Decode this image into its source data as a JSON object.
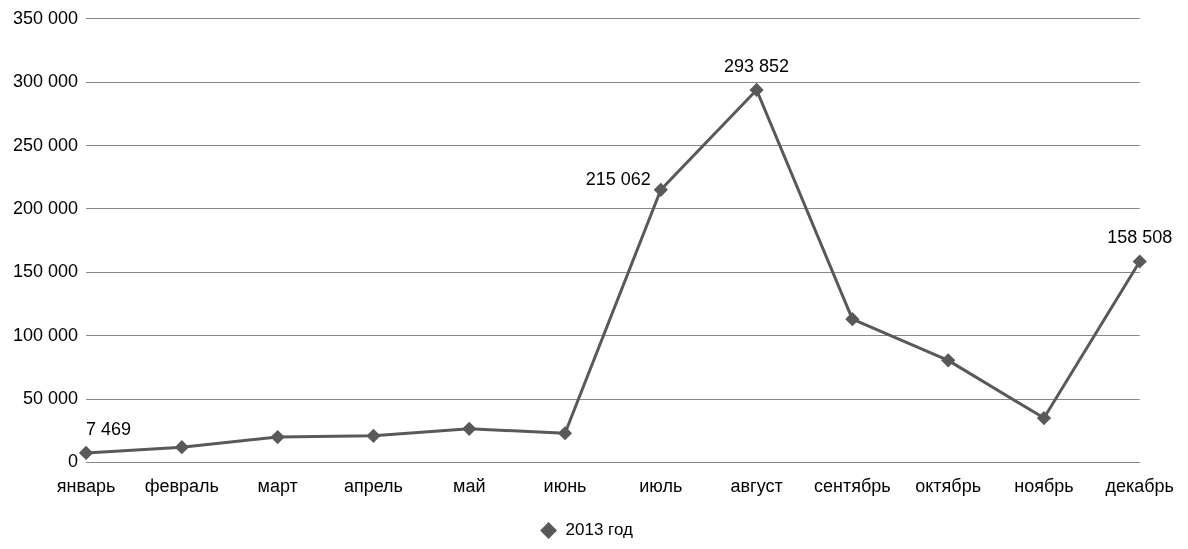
{
  "chart_data": {
    "type": "line",
    "categories": [
      "январь",
      "февраль",
      "март",
      "апрель",
      "май",
      "июнь",
      "июль",
      "август",
      "сентябрь",
      "октябрь",
      "ноябрь",
      "декабрь"
    ],
    "series": [
      {
        "name": "2013 год",
        "color": "#595959",
        "values": [
          7469,
          12000,
          20000,
          21000,
          26500,
          23000,
          215062,
          293852,
          113000,
          80500,
          35000,
          158508
        ],
        "value_labels": [
          "7 469",
          null,
          null,
          null,
          null,
          null,
          "215 062",
          "293 852",
          null,
          null,
          null,
          "158 508"
        ]
      }
    ],
    "ylim": [
      0,
      350000
    ],
    "yticks": [
      {
        "value": 0,
        "label": "0"
      },
      {
        "value": 50000,
        "label": "50 000"
      },
      {
        "value": 100000,
        "label": "100 000"
      },
      {
        "value": 150000,
        "label": "150 000"
      },
      {
        "value": 200000,
        "label": "200 000"
      },
      {
        "value": 250000,
        "label": "250 000"
      },
      {
        "value": 300000,
        "label": "300 000"
      },
      {
        "value": 350000,
        "label": "350 000"
      }
    ],
    "grid": "y",
    "legend": "bottom",
    "marker": "diamond",
    "line_style": "solid"
  }
}
